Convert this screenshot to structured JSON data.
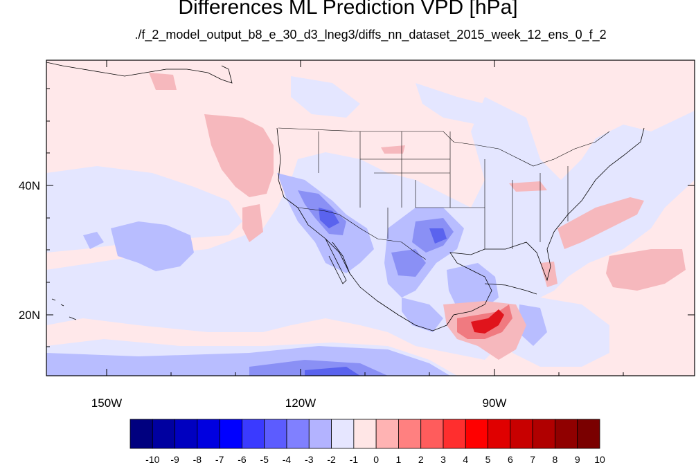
{
  "title": "Differences ML Prediction VPD [hPa]",
  "subtitle": "./f_2_model_output_b8_e_30_d3_lneg3/diffs_nn_dataset_2015_week_12_ens_0_f_2",
  "lat_labels": [
    "40N",
    "20N"
  ],
  "lon_labels": [
    "150W",
    "120W",
    "90W"
  ],
  "colorbar": {
    "labels": [
      "-10",
      "-9",
      "-8",
      "-7",
      "-6",
      "-5",
      "-4",
      "-3",
      "-2",
      "-1",
      "0",
      "1",
      "2",
      "3",
      "4",
      "5",
      "6",
      "7",
      "8",
      "9",
      "10"
    ],
    "colors": [
      "#00007f",
      "#0000a0",
      "#0000c0",
      "#0000e0",
      "#0000ff",
      "#3a3aff",
      "#5c5cff",
      "#8080ff",
      "#b3b3ff",
      "#e6e6ff",
      "#ffe6e6",
      "#ffb3b3",
      "#ff8080",
      "#ff5c5c",
      "#ff2e2e",
      "#ff0000",
      "#e00000",
      "#c80000",
      "#b00000",
      "#900000",
      "#7a0000"
    ]
  },
  "palette": {
    "background": "#ffe8ea",
    "ocean_blue": "#e4e6ff",
    "light_blue": "#b8bdff",
    "mid_blue": "#8a90f5",
    "dark_blue": "#5a63ee",
    "light_red": "#f6b8bd",
    "mid_red": "#f07a80",
    "deep_red": "#e0141c"
  }
}
